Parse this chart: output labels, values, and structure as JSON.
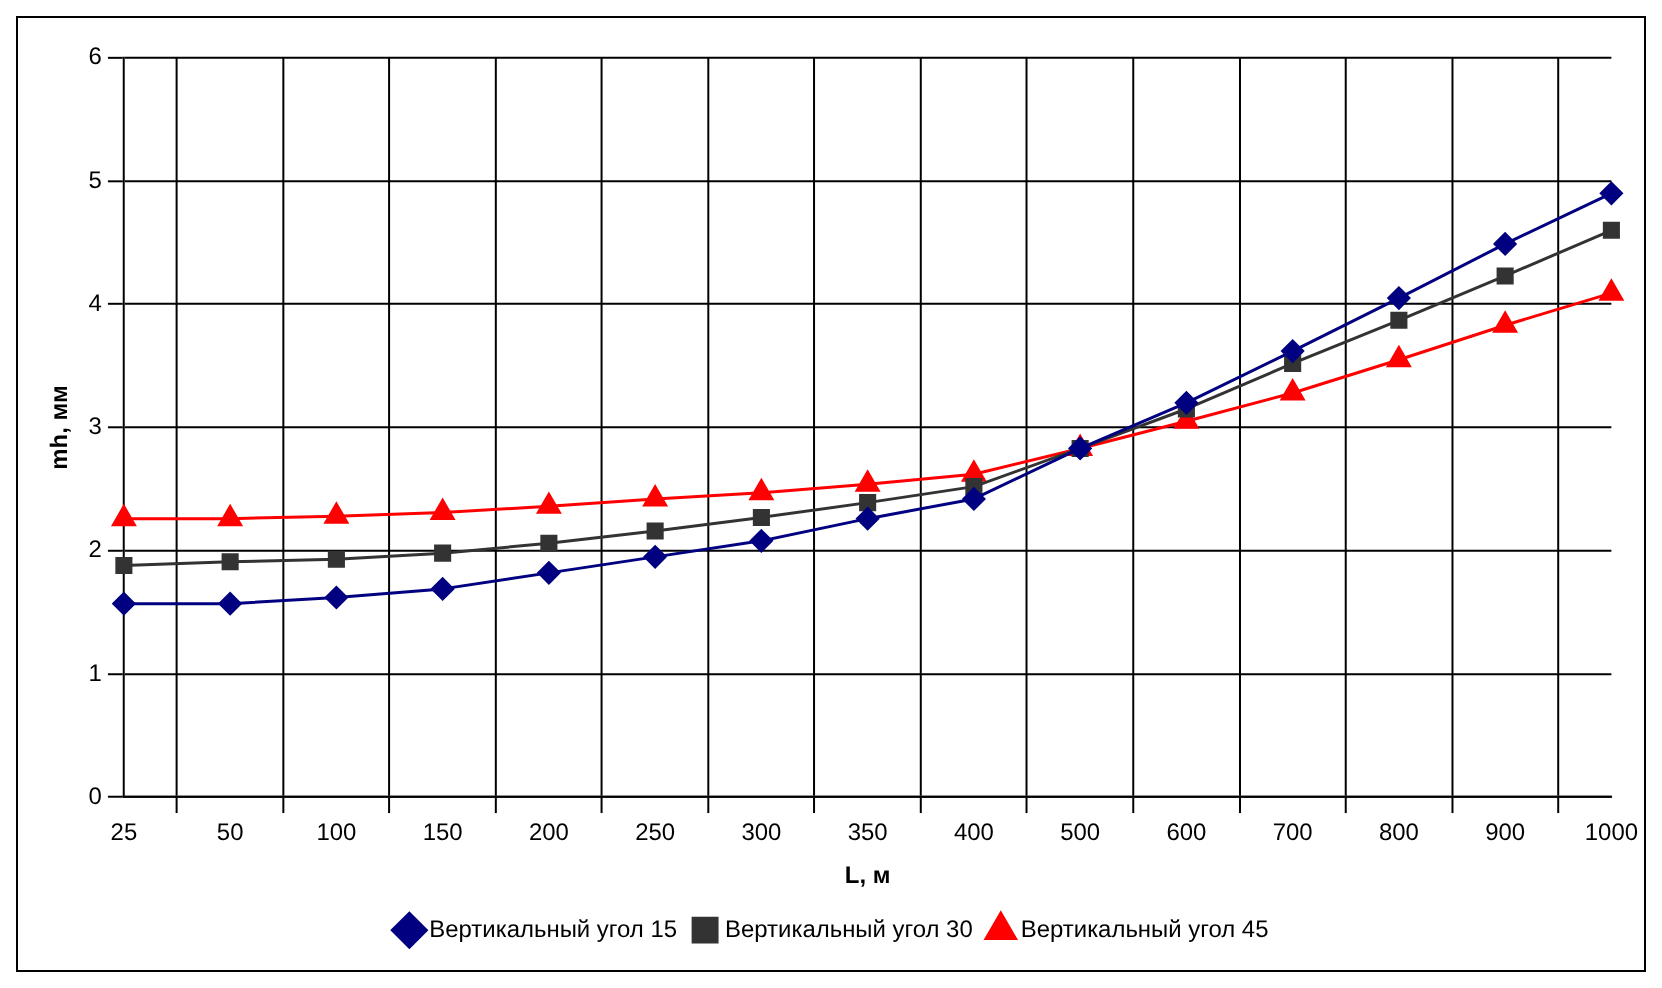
{
  "chart_data": {
    "type": "line",
    "xlabel": "L, м",
    "ylabel": "mh, мм",
    "categories": [
      "25",
      "50",
      "100",
      "150",
      "200",
      "250",
      "300",
      "350",
      "400",
      "500",
      "600",
      "700",
      "800",
      "900",
      "1000"
    ],
    "series": [
      {
        "name": "Вертикальный угол 15",
        "color": "#000080",
        "marker": "diamond",
        "values": [
          1.57,
          1.57,
          1.62,
          1.69,
          1.82,
          1.95,
          2.08,
          2.26,
          2.42,
          2.83,
          3.2,
          3.62,
          4.05,
          4.49,
          4.9
        ]
      },
      {
        "name": "Вертикальный угол 30",
        "color": "#333333",
        "marker": "square",
        "values": [
          1.88,
          1.91,
          1.93,
          1.98,
          2.06,
          2.16,
          2.27,
          2.39,
          2.52,
          2.83,
          3.15,
          3.52,
          3.87,
          4.23,
          4.6
        ]
      },
      {
        "name": "Вертикальный угол 45",
        "color": "#ff0000",
        "marker": "triangle",
        "values": [
          2.26,
          2.26,
          2.28,
          2.31,
          2.36,
          2.42,
          2.47,
          2.54,
          2.62,
          2.83,
          3.05,
          3.28,
          3.55,
          3.83,
          4.09
        ]
      }
    ],
    "ylim": [
      0,
      6
    ],
    "yticks": [
      0,
      1,
      2,
      3,
      4,
      5,
      6
    ],
    "grid": true,
    "legend": "bottom",
    "line_style": "solid"
  }
}
